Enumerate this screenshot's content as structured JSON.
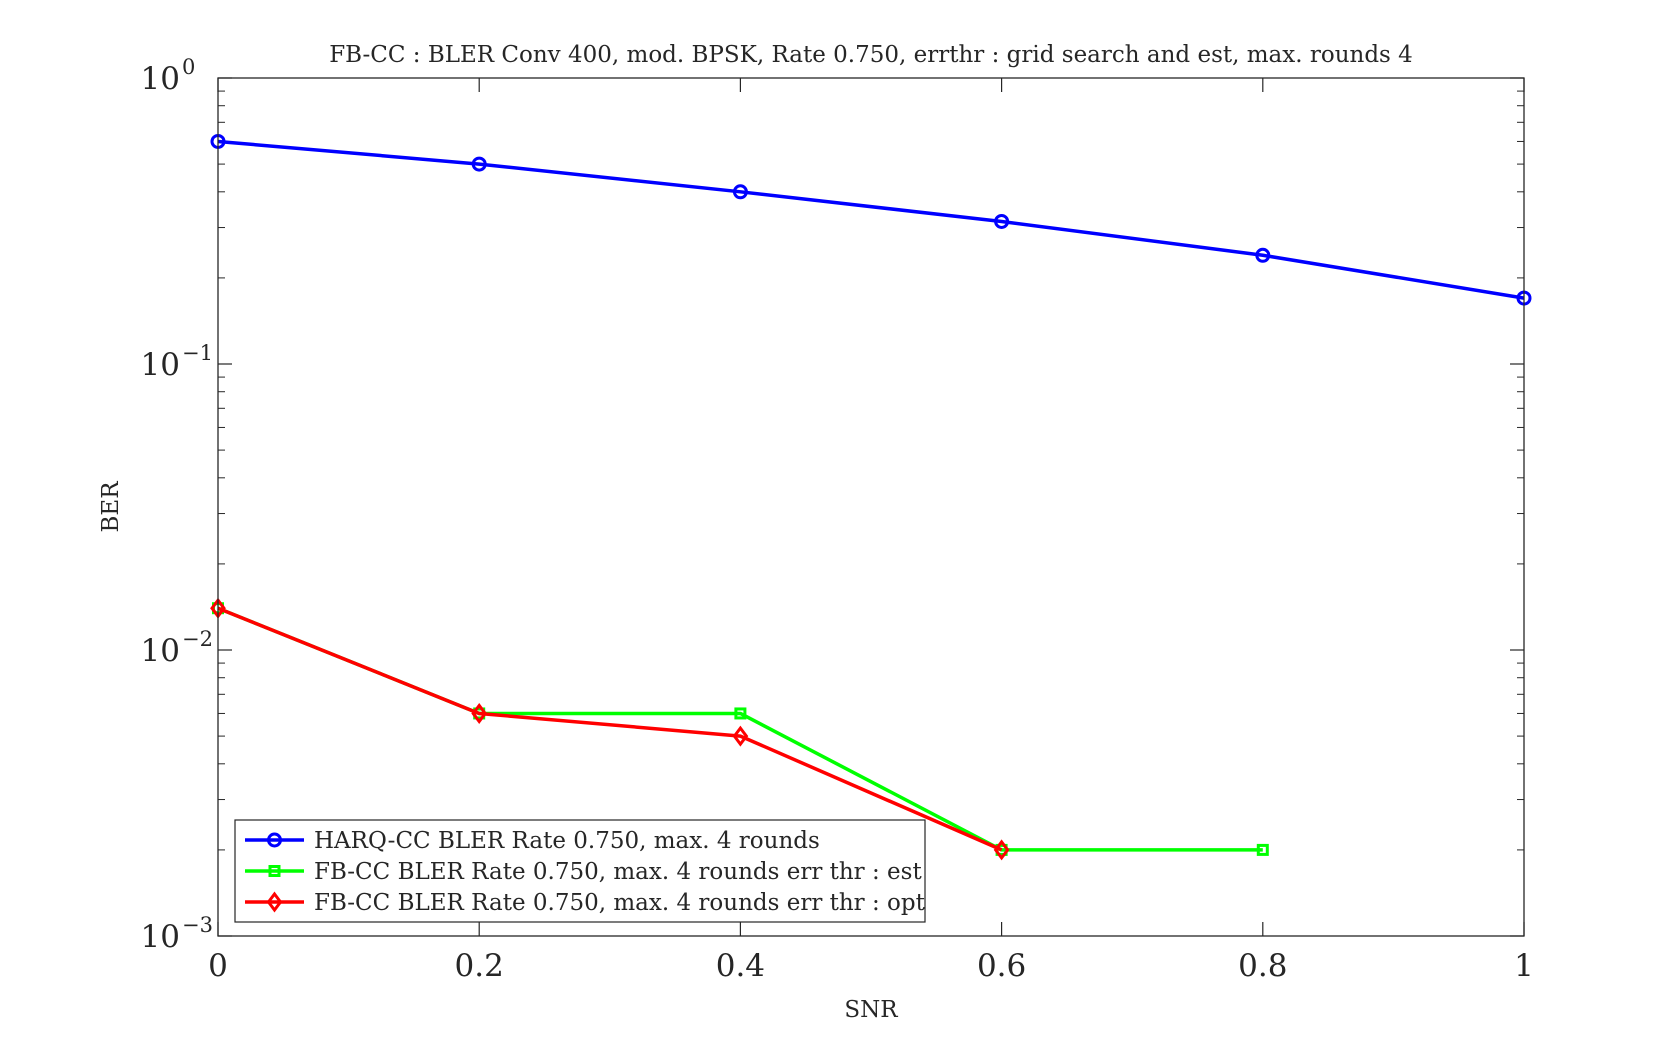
{
  "chart_data": {
    "type": "line",
    "title": "FB-CC : BLER Conv 400, mod. BPSK, Rate 0.750, errthr : grid search and est, max. rounds 4",
    "xlabel": "SNR",
    "ylabel": "BER",
    "xlim": [
      0,
      1
    ],
    "ylim": [
      0.001,
      1
    ],
    "yscale": "log",
    "xticks": [
      0,
      0.2,
      0.4,
      0.6,
      0.8,
      1
    ],
    "xtick_labels": [
      "0",
      "0.2",
      "0.4",
      "0.6",
      "0.8",
      "1"
    ],
    "yticks": [
      0.001,
      0.01,
      0.1,
      1
    ],
    "ytick_labels": [
      {
        "base": "10",
        "exp": "−3"
      },
      {
        "base": "10",
        "exp": "−2"
      },
      {
        "base": "10",
        "exp": "−1"
      },
      {
        "base": "10",
        "exp": "0"
      }
    ],
    "grid": false,
    "legend_position": "bottom-left",
    "series": [
      {
        "name": "HARQ-CC BLER Rate 0.750, max. 4 rounds",
        "color": "#0000ff",
        "marker": "circle",
        "x": [
          0,
          0.2,
          0.4,
          0.6,
          0.8,
          1
        ],
        "y": [
          0.6,
          0.5,
          0.4,
          0.315,
          0.24,
          0.17
        ]
      },
      {
        "name": "FB-CC BLER Rate 0.750, max. 4 rounds err thr : est",
        "color": "#00ff00",
        "marker": "square",
        "x": [
          0,
          0.2,
          0.4,
          0.6,
          0.8
        ],
        "y": [
          0.014,
          0.006,
          0.006,
          0.002,
          0.002
        ]
      },
      {
        "name": "FB-CC BLER Rate 0.750, max. 4 rounds err thr : opt",
        "color": "#ff0000",
        "marker": "diamond",
        "x": [
          0,
          0.2,
          0.4,
          0.6
        ],
        "y": [
          0.014,
          0.006,
          0.005,
          0.002
        ]
      }
    ]
  }
}
